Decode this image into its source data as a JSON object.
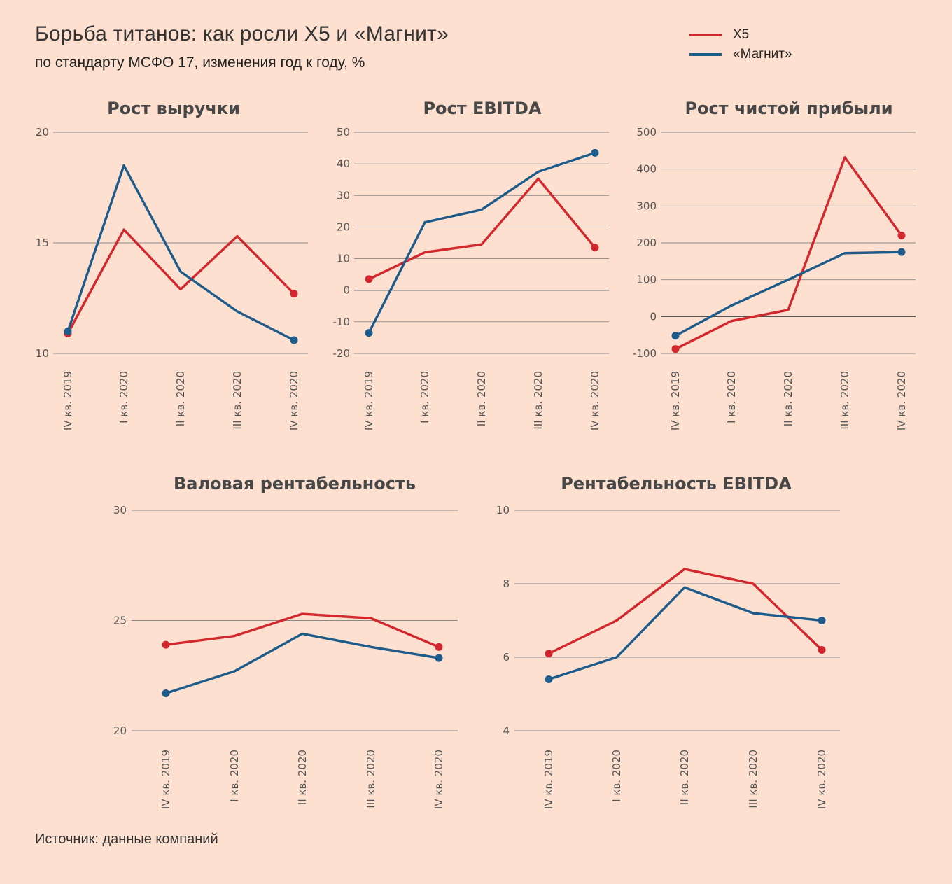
{
  "header": {
    "title": "Борьба титанов: как росли X5 и «Магнит»",
    "subtitle": "по стандарту МСФО 17, изменения год к году, %"
  },
  "legend": [
    {
      "label": "X5",
      "color": "#d1272d"
    },
    {
      "label": "«Магнит»",
      "color": "#1d5b8a"
    }
  ],
  "source": "Источник: данные компаний",
  "colors": {
    "x5": "#d1272d",
    "magnit": "#1d5b8a",
    "grid": "#888888",
    "background": "#fde0cf"
  },
  "chart_data": [
    {
      "type": "line",
      "title": "Рост выручки",
      "categories": [
        "IV кв. 2019",
        "I кв. 2020",
        "II кв. 2020",
        "III кв. 2020",
        "IV кв. 2020"
      ],
      "yticks": [
        10,
        15,
        20
      ],
      "ylim": [
        10,
        20
      ],
      "series": [
        {
          "name": "X5",
          "values": [
            10.9,
            15.6,
            12.9,
            15.3,
            12.7
          ]
        },
        {
          "name": "«Магнит»",
          "values": [
            11.0,
            18.5,
            13.7,
            11.9,
            10.6
          ]
        }
      ]
    },
    {
      "type": "line",
      "title": "Рост EBITDA",
      "categories": [
        "IV кв. 2019",
        "I кв. 2020",
        "II кв. 2020",
        "III кв. 2020",
        "IV кв. 2020"
      ],
      "yticks": [
        -20,
        -10,
        0,
        10,
        20,
        30,
        40,
        50
      ],
      "ylim": [
        -20,
        50
      ],
      "series": [
        {
          "name": "X5",
          "values": [
            3.5,
            12,
            14.5,
            35.3,
            13.5
          ]
        },
        {
          "name": "«Магнит»",
          "values": [
            -13.5,
            21.5,
            25.5,
            37.5,
            43.5
          ]
        }
      ]
    },
    {
      "type": "line",
      "title": "Рост чистой прибыли",
      "categories": [
        "IV кв. 2019",
        "I кв. 2020",
        "II кв. 2020",
        "III кв. 2020",
        "IV кв. 2020"
      ],
      "yticks": [
        -100,
        0,
        100,
        200,
        300,
        400,
        500
      ],
      "ylim": [
        -100,
        500
      ],
      "series": [
        {
          "name": "X5",
          "values": [
            -88,
            -12,
            18,
            432,
            220
          ]
        },
        {
          "name": "«Магнит»",
          "values": [
            -52,
            30,
            100,
            172,
            175
          ]
        }
      ]
    },
    {
      "type": "line",
      "title": "Валовая рентабельность",
      "categories": [
        "IV кв. 2019",
        "I кв. 2020",
        "II кв. 2020",
        "III кв. 2020",
        "IV кв. 2020"
      ],
      "yticks": [
        20,
        25,
        30
      ],
      "ylim": [
        20,
        30
      ],
      "series": [
        {
          "name": "X5",
          "values": [
            23.9,
            24.3,
            25.3,
            25.1,
            23.8
          ]
        },
        {
          "name": "«Магнит»",
          "values": [
            21.7,
            22.7,
            24.4,
            23.8,
            23.3
          ]
        }
      ]
    },
    {
      "type": "line",
      "title": "Рентабельность EBITDA",
      "categories": [
        "IV кв. 2019",
        "I кв. 2020",
        "II кв. 2020",
        "III кв. 2020",
        "IV кв. 2020"
      ],
      "yticks": [
        4,
        6,
        8,
        10
      ],
      "ylim": [
        4,
        10
      ],
      "series": [
        {
          "name": "X5",
          "values": [
            6.1,
            7.0,
            8.4,
            8.0,
            6.2
          ]
        },
        {
          "name": "«Магнит»",
          "values": [
            5.4,
            6.0,
            7.9,
            7.2,
            7.0
          ]
        }
      ]
    }
  ]
}
